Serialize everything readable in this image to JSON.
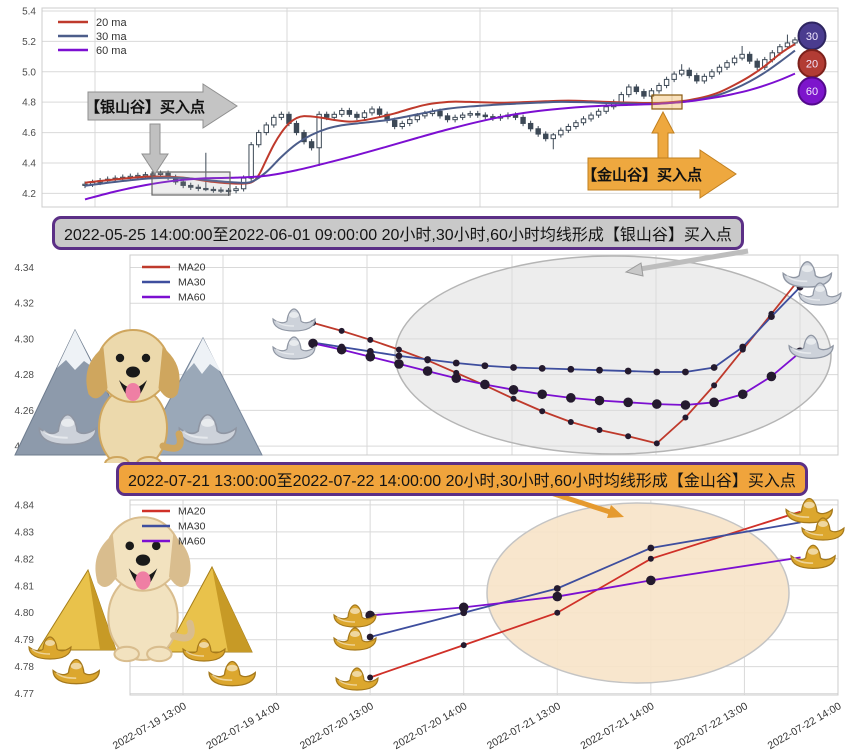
{
  "figure": {
    "background": "#ffffff",
    "grid_color": "#d9d9d9",
    "axis_label_color": "#4d4d4d"
  },
  "chart_data": [
    {
      "name": "hourly-candlestick-overview",
      "type": "candlestick+line",
      "legend": [
        {
          "label": "20 ma",
          "color": "#bf3a2c"
        },
        {
          "label": "30 ma",
          "color": "#4c5d8a"
        },
        {
          "label": "60 ma",
          "color": "#7c0fd1"
        }
      ],
      "y_ticks": [
        5.4,
        5.2,
        5.0,
        4.8,
        4.6,
        4.4,
        4.2
      ],
      "ylim": [
        4.11,
        5.42
      ],
      "grid": true,
      "candle_up_fill": "#ffffff",
      "candle_down_fill": "#3d4956",
      "candle_stroke": "#3d4956",
      "candles": {
        "first_open": 4.252,
        "closes": [
          4.26,
          4.272,
          4.283,
          4.293,
          4.3,
          4.306,
          4.312,
          4.318,
          4.323,
          4.328,
          4.332,
          4.305,
          4.275,
          4.252,
          4.24,
          4.232,
          4.226,
          4.222,
          4.22,
          4.218,
          4.23,
          4.3,
          4.52,
          4.6,
          4.65,
          4.7,
          4.72,
          4.66,
          4.6,
          4.54,
          4.5,
          4.72,
          4.7,
          4.72,
          4.745,
          4.72,
          4.7,
          4.73,
          4.755,
          4.72,
          4.68,
          4.64,
          4.66,
          4.685,
          4.71,
          4.725,
          4.74,
          4.71,
          4.685,
          4.7,
          4.715,
          4.725,
          4.715,
          4.705,
          4.695,
          4.705,
          4.715,
          4.7,
          4.66,
          4.625,
          4.59,
          4.56,
          4.585,
          4.615,
          4.64,
          4.665,
          4.69,
          4.715,
          4.74,
          4.77,
          4.8,
          4.85,
          4.9,
          4.87,
          4.84,
          4.875,
          4.91,
          4.95,
          4.985,
          5.01,
          4.975,
          4.94,
          4.97,
          5.0,
          5.03,
          5.06,
          5.09,
          5.115,
          5.07,
          5.03,
          5.08,
          5.125,
          5.165,
          5.19,
          5.21
        ],
        "wick_up_default": 0.018,
        "wick_dn_default": 0.018,
        "wick_overrides": {
          "9": [
            0.105,
            0.012
          ],
          "16": [
            0.235,
            0.012
          ],
          "19": [
            0.015,
            0.035
          ],
          "31": [
            0.02,
            0.12
          ],
          "62": [
            0.012,
            0.07
          ],
          "79": [
            0.04,
            0.015
          ],
          "87": [
            0.055,
            0.015
          ],
          "93": [
            0.055,
            0.012
          ]
        }
      },
      "ma20_anchors": [
        [
          0,
          4.27
        ],
        [
          5,
          4.297
        ],
        [
          9,
          4.311
        ],
        [
          13,
          4.303
        ],
        [
          17,
          4.275
        ],
        [
          20,
          4.264
        ],
        [
          22,
          4.272
        ],
        [
          23,
          4.32
        ],
        [
          24,
          4.42
        ],
        [
          25,
          4.52
        ],
        [
          26,
          4.6
        ],
        [
          27,
          4.66
        ],
        [
          28,
          4.695
        ],
        [
          29,
          4.708
        ],
        [
          31,
          4.7
        ],
        [
          33,
          4.683
        ],
        [
          35,
          4.672
        ],
        [
          37,
          4.682
        ],
        [
          39,
          4.702
        ],
        [
          41,
          4.726
        ],
        [
          43,
          4.756
        ],
        [
          45,
          4.782
        ],
        [
          47,
          4.797
        ],
        [
          49,
          4.804
        ],
        [
          52,
          4.8
        ],
        [
          55,
          4.796
        ],
        [
          58,
          4.8
        ],
        [
          61,
          4.806
        ],
        [
          64,
          4.81
        ],
        [
          67,
          4.806
        ],
        [
          70,
          4.8
        ],
        [
          73,
          4.796
        ],
        [
          76,
          4.795
        ],
        [
          78,
          4.802
        ],
        [
          80,
          4.814
        ],
        [
          82,
          4.834
        ],
        [
          84,
          4.866
        ],
        [
          86,
          4.914
        ],
        [
          88,
          4.97
        ],
        [
          90,
          5.038
        ],
        [
          92,
          5.118
        ],
        [
          93,
          5.152
        ],
        [
          94,
          5.182
        ]
      ],
      "ma30_anchors": [
        [
          0,
          4.25
        ],
        [
          5,
          4.281
        ],
        [
          9,
          4.299
        ],
        [
          13,
          4.301
        ],
        [
          17,
          4.283
        ],
        [
          20,
          4.271
        ],
        [
          22,
          4.275
        ],
        [
          24,
          4.34
        ],
        [
          26,
          4.44
        ],
        [
          28,
          4.525
        ],
        [
          30,
          4.585
        ],
        [
          32,
          4.625
        ],
        [
          34,
          4.648
        ],
        [
          36,
          4.66
        ],
        [
          38,
          4.67
        ],
        [
          40,
          4.682
        ],
        [
          42,
          4.7
        ],
        [
          44,
          4.72
        ],
        [
          46,
          4.74
        ],
        [
          48,
          4.757
        ],
        [
          51,
          4.772
        ],
        [
          54,
          4.782
        ],
        [
          57,
          4.79
        ],
        [
          60,
          4.797
        ],
        [
          63,
          4.802
        ],
        [
          66,
          4.8
        ],
        [
          69,
          4.795
        ],
        [
          72,
          4.791
        ],
        [
          75,
          4.789
        ],
        [
          78,
          4.797
        ],
        [
          80,
          4.807
        ],
        [
          82,
          4.824
        ],
        [
          84,
          4.85
        ],
        [
          86,
          4.888
        ],
        [
          88,
          4.936
        ],
        [
          90,
          4.995
        ],
        [
          92,
          5.065
        ],
        [
          94,
          5.14
        ]
      ],
      "ma60_anchors": [
        [
          0,
          4.16
        ],
        [
          4,
          4.212
        ],
        [
          8,
          4.254
        ],
        [
          12,
          4.284
        ],
        [
          16,
          4.299
        ],
        [
          20,
          4.303
        ],
        [
          24,
          4.316
        ],
        [
          28,
          4.352
        ],
        [
          32,
          4.4
        ],
        [
          36,
          4.452
        ],
        [
          40,
          4.508
        ],
        [
          44,
          4.565
        ],
        [
          48,
          4.62
        ],
        [
          52,
          4.67
        ],
        [
          56,
          4.712
        ],
        [
          60,
          4.742
        ],
        [
          64,
          4.762
        ],
        [
          68,
          4.775
        ],
        [
          72,
          4.782
        ],
        [
          76,
          4.79
        ],
        [
          80,
          4.806
        ],
        [
          84,
          4.836
        ],
        [
          86,
          4.856
        ],
        [
          88,
          4.88
        ],
        [
          90,
          4.91
        ],
        [
          92,
          4.946
        ],
        [
          94,
          4.988
        ]
      ],
      "annotations": {
        "silver_label": "【银山谷】买入点",
        "gold_label": "【金山谷】买入点",
        "silver_box_color": "#666666",
        "gold_box_color": "#8a5a10",
        "silver_fill": "#c4c4c4",
        "gold_fill": "#eea83f"
      },
      "end_badges": [
        {
          "label": "30",
          "color": "#4a3c8f",
          "ring": "#2e2560"
        },
        {
          "label": "20",
          "color": "#b23c34",
          "ring": "#7c211b"
        },
        {
          "label": "60",
          "color": "#7d15cc",
          "ring": "#53098c"
        }
      ]
    },
    {
      "name": "silver-valley-detail",
      "type": "line",
      "title": "2022-05-25 14:00:00至2022-06-01 09:00:00 20小时,30小时,60小时均线形成【银山谷】买入点",
      "title_bg": "#c9c9c9",
      "title_border": "#5b2f86",
      "legend": [
        {
          "label": "MA20",
          "color": "#bf3a2c"
        },
        {
          "label": "MA30",
          "color": "#3e4e9e"
        },
        {
          "label": "MA60",
          "color": "#7c0fd1"
        }
      ],
      "y_ticks": [
        4.34,
        4.32,
        4.3,
        4.28,
        4.26,
        4.24
      ],
      "ylim": [
        4.235,
        4.347
      ],
      "grid": true,
      "marker_color": "#241a2e",
      "highlight_ellipse": {
        "fill": "#dcdcdc",
        "stroke": "#b5b5b5",
        "opacity": 0.5
      },
      "series": [
        {
          "name": "MA20",
          "color": "#bf3a2c",
          "values": [
            4.309,
            4.3045,
            4.2995,
            4.294,
            4.288,
            4.281,
            4.274,
            4.2665,
            4.2595,
            4.2535,
            4.249,
            4.2455,
            4.2415,
            4.256,
            4.274,
            4.294,
            4.314,
            4.334
          ]
        },
        {
          "name": "MA30",
          "color": "#3e4e9e",
          "values": [
            4.298,
            4.2955,
            4.293,
            4.2905,
            4.2885,
            4.2865,
            4.285,
            4.284,
            4.2835,
            4.283,
            4.2825,
            4.282,
            4.2815,
            4.2815,
            4.284,
            4.2955,
            4.3125,
            4.329
          ]
        },
        {
          "name": "MA60",
          "color": "#7c0fd1",
          "values": [
            4.2975,
            4.294,
            4.29,
            4.286,
            4.282,
            4.278,
            4.2745,
            4.2715,
            4.269,
            4.267,
            4.2655,
            4.2645,
            4.2635,
            4.263,
            4.2645,
            4.269,
            4.279,
            4.2925
          ]
        }
      ]
    },
    {
      "name": "gold-valley-detail",
      "type": "line",
      "title": "2022-07-21 13:00:00至2022-07-22 14:00:00 20小时,30小时,60小时均线形成【金山谷】买入点",
      "title_bg": "#f0a43c",
      "title_border": "#5b2f86",
      "legend": [
        {
          "label": "MA20",
          "color": "#d03028"
        },
        {
          "label": "MA30",
          "color": "#3e4e9e"
        },
        {
          "label": "MA60",
          "color": "#7c0fd1"
        }
      ],
      "y_ticks": [
        4.84,
        4.83,
        4.82,
        4.81,
        4.8,
        4.79,
        4.78,
        4.77
      ],
      "ylim": [
        4.7695,
        4.8418
      ],
      "x_labels": [
        "2022-07-19 13:00",
        "2022-07-19 14:00",
        "2022-07-20 13:00",
        "2022-07-20 14:00",
        "2022-07-21 13:00",
        "2022-07-21 14:00",
        "2022-07-22 13:00",
        "2022-07-22 14:00"
      ],
      "grid": true,
      "marker_color": "#241a2e",
      "highlight_ellipse": {
        "fill": "#f7e3c8",
        "stroke": "#c4c4c4",
        "opacity": 0.9
      },
      "series": [
        {
          "name": "MA20",
          "color": "#d03028",
          "x": [
            2,
            3,
            4,
            5,
            6.6
          ],
          "values": [
            4.776,
            4.788,
            4.8,
            4.82,
            4.8375
          ]
        },
        {
          "name": "MA30",
          "color": "#3e4e9e",
          "x": [
            2,
            3,
            4,
            5,
            6.6
          ],
          "values": [
            4.791,
            4.8,
            4.809,
            4.824,
            4.8335
          ]
        },
        {
          "name": "MA60",
          "color": "#7c0fd1",
          "x": [
            2,
            3,
            4,
            5,
            6.6
          ],
          "values": [
            4.799,
            4.802,
            4.806,
            4.812,
            4.8205
          ]
        }
      ]
    }
  ],
  "decor": {
    "silver_scene": "dog-with-silver-mountains-and-silver-ingots",
    "gold_scene": "dog-with-gold-pyramids-and-gold-ingots",
    "ingot_gold_fill": "#dca72e",
    "ingot_gold_stroke": "#a5791c",
    "ingot_silver_fill": "#cdd2da",
    "ingot_silver_stroke": "#8f96a3"
  }
}
